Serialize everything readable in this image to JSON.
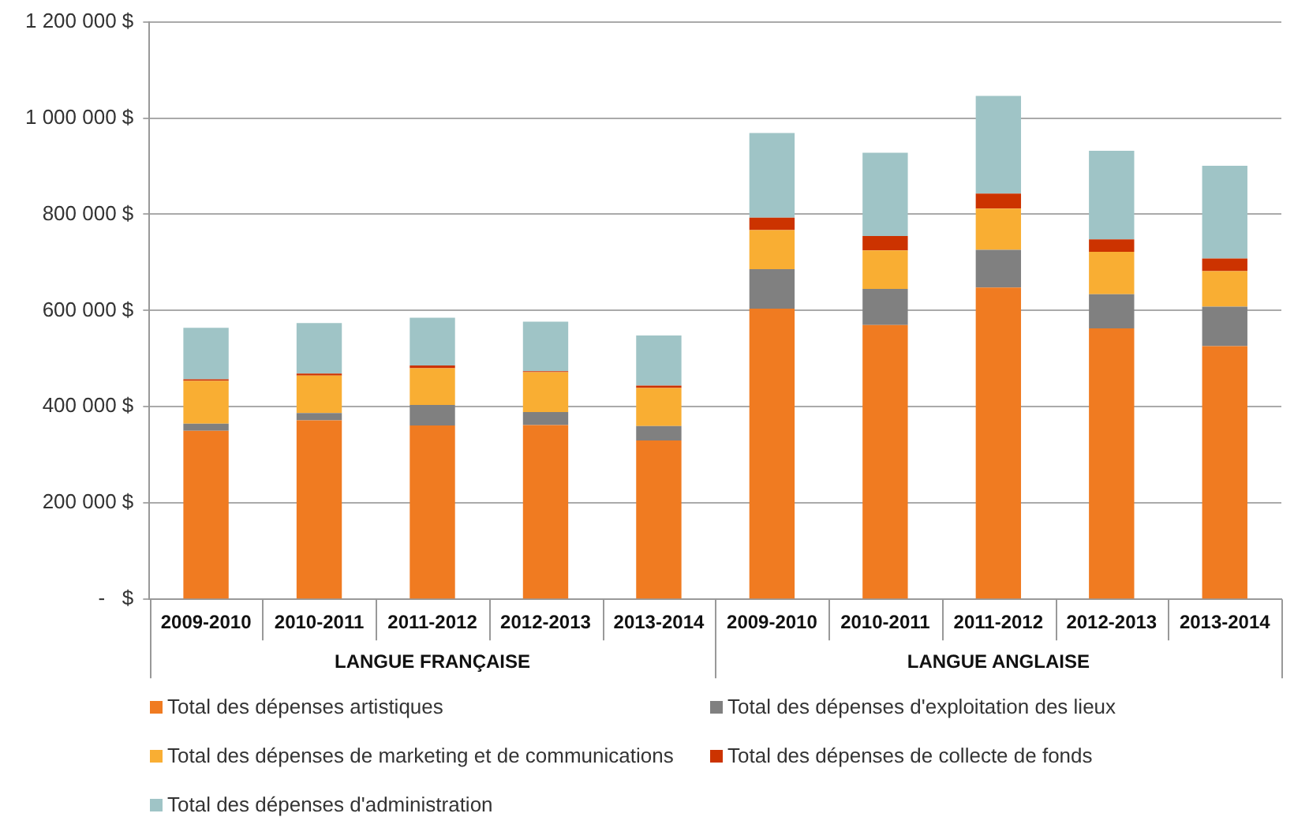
{
  "chart_data": {
    "type": "bar",
    "stacked": true,
    "grid": "y",
    "legend": "bottom",
    "categories": [
      "2009-2010",
      "2010-2011",
      "2011-2012",
      "2012-2013",
      "2013-2014",
      "2009-2010",
      "2010-2011",
      "2011-2012",
      "2012-2013",
      "2013-2014"
    ],
    "annotations": [
      "LANGUE FRANÇAISE",
      "LANGUE ANGLAISE"
    ],
    "ylim": [
      0,
      1200000
    ],
    "yticks": [
      {
        "value": 0,
        "label": "-   $"
      },
      {
        "value": 200000,
        "label": "200 000 $"
      },
      {
        "value": 400000,
        "label": "400 000 $"
      },
      {
        "value": 600000,
        "label": "600 000 $"
      },
      {
        "value": 800000,
        "label": "800 000 $"
      },
      {
        "value": 1000000,
        "label": "1 000 000 $"
      },
      {
        "value": 1200000,
        "label": "1 200 000 $"
      }
    ],
    "series": [
      {
        "name": "Total des dépenses artistiques",
        "color": "#f07b21",
        "values": [
          350000,
          372000,
          361000,
          362000,
          330000,
          604000,
          570000,
          648000,
          563000,
          526000
        ]
      },
      {
        "name": "Total des dépenses d'exploitation des lieux",
        "color": "#808080",
        "values": [
          15000,
          15000,
          43000,
          27000,
          30000,
          82000,
          75000,
          78000,
          71000,
          82000
        ]
      },
      {
        "name": "Total des dépenses de marketing et de communications",
        "color": "#f9ae33",
        "values": [
          89000,
          78000,
          76000,
          83000,
          79000,
          81000,
          80000,
          86000,
          88000,
          74000
        ]
      },
      {
        "name": "Total des dépenses de collecte de fonds",
        "color": "#cc3300",
        "values": [
          3000,
          4000,
          6000,
          2000,
          5000,
          26000,
          30000,
          31000,
          26000,
          26000
        ]
      },
      {
        "name": "Total des dépenses d'administration",
        "color": "#9fc4c6",
        "values": [
          107000,
          105000,
          99000,
          103000,
          104000,
          176000,
          173000,
          203000,
          184000,
          193000
        ]
      }
    ]
  }
}
